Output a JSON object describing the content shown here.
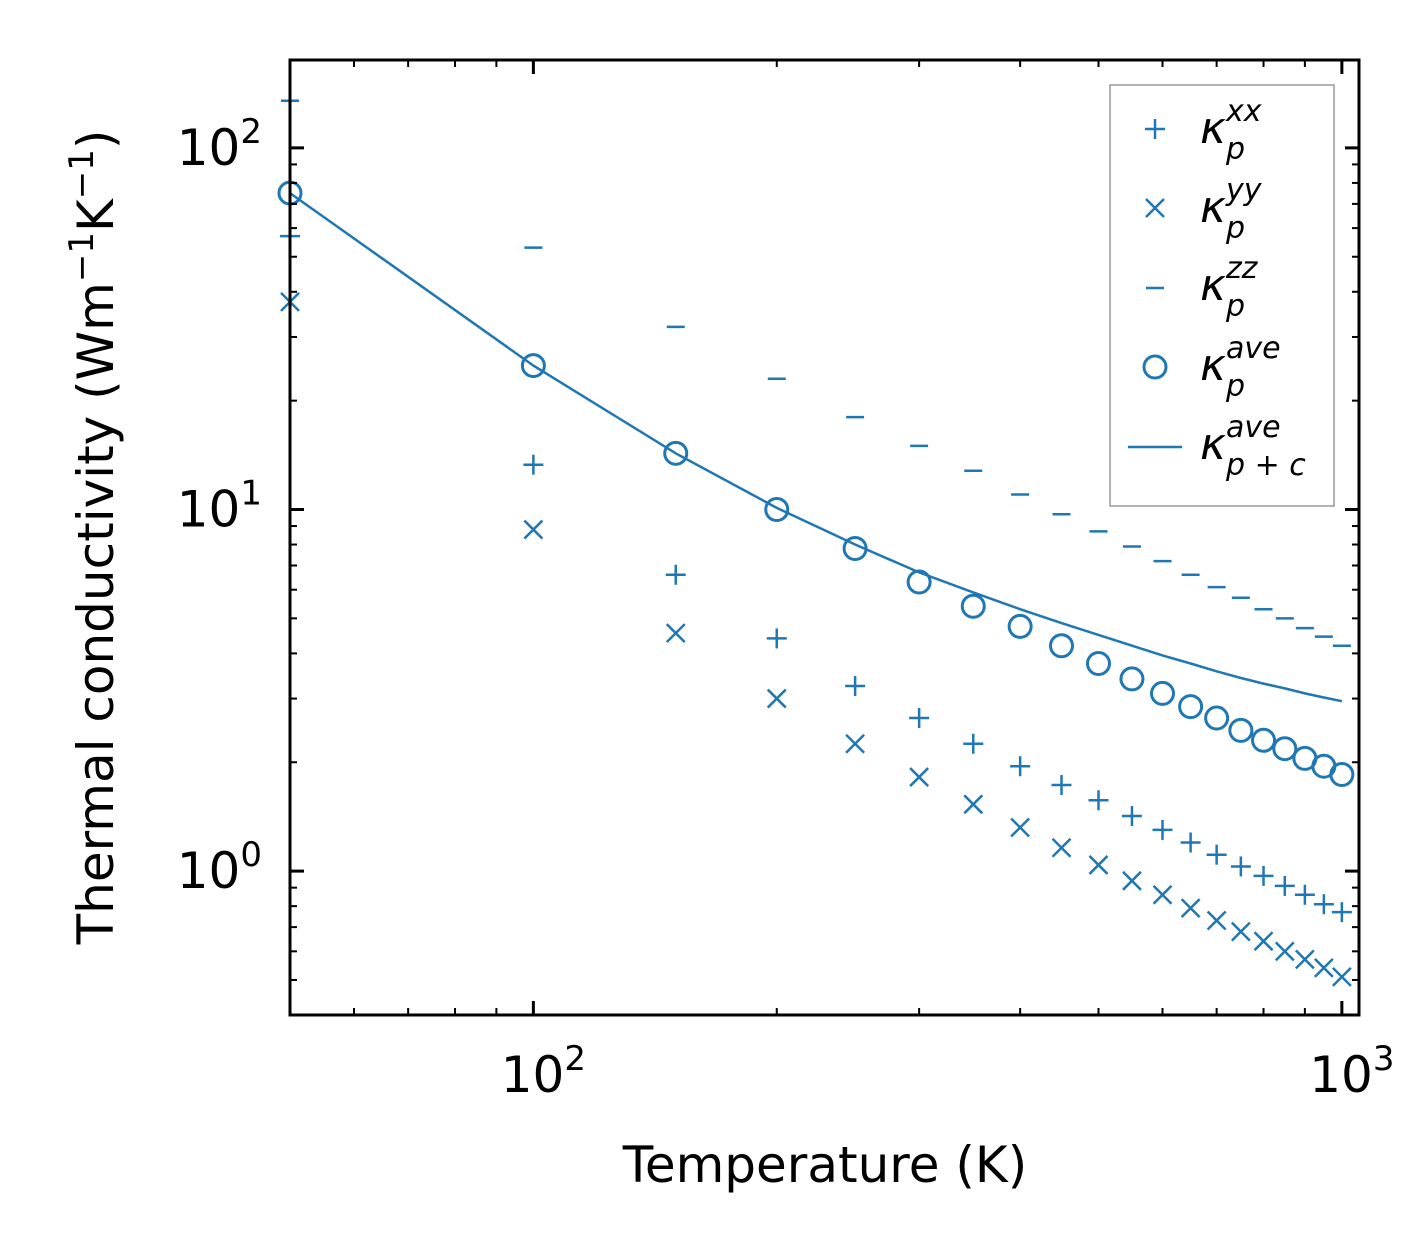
{
  "chart_data": {
    "type": "scatter",
    "x_scale": "log",
    "y_scale": "log",
    "xlabel": "Temperature (K)",
    "ylabel": "Thermal conductivity (Wm",
    "ylabel_unit_k": "K",
    "ylabel_close": ")",
    "ylabel_exp": "−1",
    "xlim": [
      50,
      1050
    ],
    "ylim": [
      0.4,
      175
    ],
    "x_ticks": [
      {
        "value": 100,
        "base": "10",
        "exp": "2"
      },
      {
        "value": 1000,
        "base": "10",
        "exp": "3"
      }
    ],
    "y_ticks": [
      {
        "value": 1,
        "base": "10",
        "exp": "0"
      },
      {
        "value": 10,
        "base": "10",
        "exp": "1"
      },
      {
        "value": 100,
        "base": "10",
        "exp": "2"
      }
    ],
    "x": [
      50,
      100,
      150,
      200,
      250,
      300,
      350,
      400,
      450,
      500,
      550,
      600,
      650,
      700,
      750,
      800,
      850,
      900,
      950,
      1000
    ],
    "series": [
      {
        "name": "kappa_p_xx",
        "label_main": "κ",
        "label_sub": "p",
        "label_sup": "xx",
        "marker": "plus",
        "values": [
          57,
          13.3,
          6.6,
          4.4,
          3.25,
          2.65,
          2.25,
          1.95,
          1.73,
          1.57,
          1.42,
          1.3,
          1.2,
          1.11,
          1.03,
          0.97,
          0.91,
          0.86,
          0.81,
          0.77
        ]
      },
      {
        "name": "kappa_p_yy",
        "label_main": "κ",
        "label_sub": "p",
        "label_sup": "yy",
        "marker": "x",
        "values": [
          37.5,
          8.8,
          4.55,
          3.0,
          2.25,
          1.82,
          1.53,
          1.32,
          1.16,
          1.04,
          0.94,
          0.86,
          0.79,
          0.73,
          0.68,
          0.64,
          0.6,
          0.57,
          0.54,
          0.51
        ]
      },
      {
        "name": "kappa_p_zz",
        "label_main": "κ",
        "label_sub": "p",
        "label_sup": "zz",
        "marker": "dash",
        "values": [
          135,
          53,
          32,
          23,
          18,
          15,
          12.8,
          11,
          9.7,
          8.7,
          7.9,
          7.2,
          6.6,
          6.1,
          5.7,
          5.3,
          5.0,
          4.7,
          4.45,
          4.2
        ]
      },
      {
        "name": "kappa_p_ave",
        "label_main": "κ",
        "label_sub": "p",
        "label_sup": "ave",
        "marker": "circle",
        "values": [
          75,
          25,
          14.3,
          10,
          7.8,
          6.3,
          5.4,
          4.75,
          4.2,
          3.75,
          3.4,
          3.1,
          2.85,
          2.65,
          2.45,
          2.3,
          2.18,
          2.05,
          1.95,
          1.85
        ]
      },
      {
        "name": "kappa_pc_ave",
        "label_main": "κ",
        "label_sub": "p + c",
        "label_sup": "ave",
        "marker": "line",
        "values": [
          75,
          25,
          14.3,
          10.1,
          8.0,
          6.7,
          5.9,
          5.3,
          4.85,
          4.5,
          4.2,
          3.95,
          3.75,
          3.57,
          3.42,
          3.3,
          3.2,
          3.1,
          3.02,
          2.95
        ]
      }
    ],
    "legend_position": "top-right",
    "color": "#1f77b4"
  }
}
